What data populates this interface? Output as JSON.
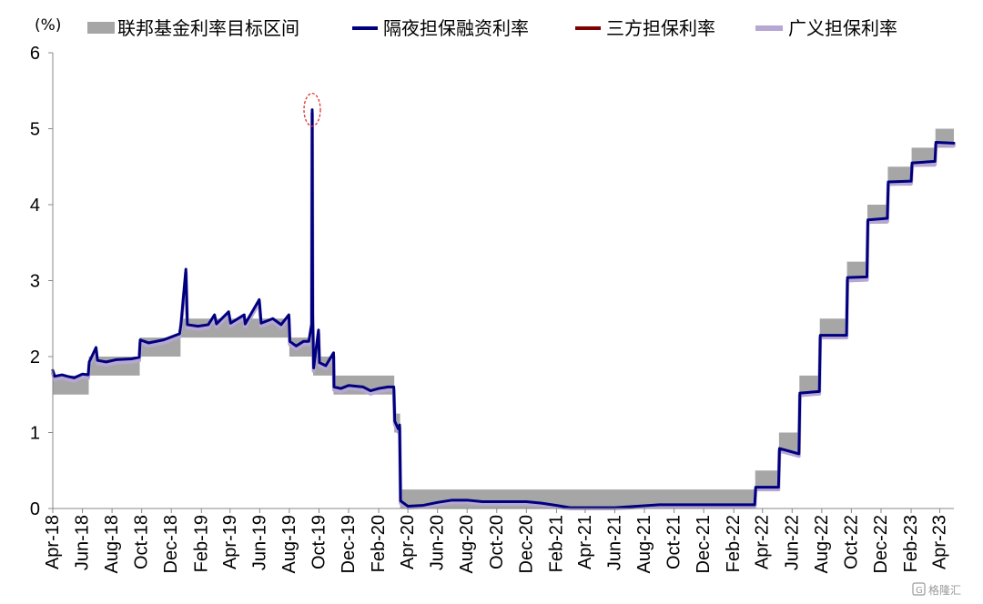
{
  "chart_data": {
    "type": "line",
    "title": "",
    "y_unit": "(%)",
    "ylim": [
      0,
      6
    ],
    "y_ticks": [
      "0",
      "1",
      "2",
      "3",
      "4",
      "5",
      "6"
    ],
    "x_range": [
      "2018-04-01",
      "2023-04-30"
    ],
    "x_tick_labels": [
      "Apr-18",
      "Jun-18",
      "Aug-18",
      "Oct-18",
      "Dec-18",
      "Feb-19",
      "Apr-19",
      "Jun-19",
      "Aug-19",
      "Oct-19",
      "Dec-19",
      "Feb-20",
      "Apr-20",
      "Jun-20",
      "Aug-20",
      "Oct-20",
      "Dec-20",
      "Feb-21",
      "Apr-21",
      "Jun-21",
      "Aug-21",
      "Oct-21",
      "Dec-21",
      "Feb-22",
      "Apr-22",
      "Jun-22",
      "Aug-22",
      "Oct-22",
      "Dec-22",
      "Feb-23",
      "Apr-23"
    ],
    "grid": false,
    "legend_position": "top",
    "fed_target_range": {
      "name": "联邦基金利率目标区间",
      "color": "#a6a6a6",
      "steps": [
        {
          "from": "2018-04-01",
          "lower": 1.5,
          "upper": 1.75
        },
        {
          "from": "2018-06-14",
          "lower": 1.75,
          "upper": 2.0
        },
        {
          "from": "2018-09-27",
          "lower": 2.0,
          "upper": 2.25
        },
        {
          "from": "2018-12-20",
          "lower": 2.25,
          "upper": 2.5
        },
        {
          "from": "2019-08-01",
          "lower": 2.0,
          "upper": 2.25
        },
        {
          "from": "2019-09-19",
          "lower": 1.75,
          "upper": 2.0
        },
        {
          "from": "2019-10-31",
          "lower": 1.5,
          "upper": 1.75
        },
        {
          "from": "2020-03-04",
          "lower": 1.0,
          "upper": 1.25
        },
        {
          "from": "2020-03-16",
          "lower": 0.0,
          "upper": 0.25
        },
        {
          "from": "2022-03-17",
          "lower": 0.25,
          "upper": 0.5
        },
        {
          "from": "2022-05-05",
          "lower": 0.75,
          "upper": 1.0
        },
        {
          "from": "2022-06-16",
          "lower": 1.5,
          "upper": 1.75
        },
        {
          "from": "2022-07-28",
          "lower": 2.25,
          "upper": 2.5
        },
        {
          "from": "2022-09-22",
          "lower": 3.0,
          "upper": 3.25
        },
        {
          "from": "2022-11-03",
          "lower": 3.75,
          "upper": 4.0
        },
        {
          "from": "2022-12-15",
          "lower": 4.25,
          "upper": 4.5
        },
        {
          "from": "2023-02-02",
          "lower": 4.5,
          "upper": 4.75
        },
        {
          "from": "2023-03-23",
          "lower": 4.75,
          "upper": 5.0
        },
        {
          "to": "2023-04-30"
        }
      ]
    },
    "series": [
      {
        "name": "隔夜担保融资利率",
        "color": "#00007f",
        "width": 3,
        "points": [
          [
            "2018-04-01",
            1.82
          ],
          [
            "2018-04-05",
            1.74
          ],
          [
            "2018-04-20",
            1.76
          ],
          [
            "2018-05-01",
            1.74
          ],
          [
            "2018-05-15",
            1.72
          ],
          [
            "2018-06-01",
            1.77
          ],
          [
            "2018-06-13",
            1.76
          ],
          [
            "2018-06-15",
            1.93
          ],
          [
            "2018-06-29",
            2.12
          ],
          [
            "2018-07-02",
            1.95
          ],
          [
            "2018-07-20",
            1.93
          ],
          [
            "2018-08-10",
            1.96
          ],
          [
            "2018-09-10",
            1.97
          ],
          [
            "2018-09-26",
            1.99
          ],
          [
            "2018-09-28",
            2.22
          ],
          [
            "2018-10-15",
            2.18
          ],
          [
            "2018-11-15",
            2.22
          ],
          [
            "2018-12-18",
            2.3
          ],
          [
            "2018-12-21",
            2.43
          ],
          [
            "2018-12-31",
            3.15
          ],
          [
            "2019-01-03",
            2.42
          ],
          [
            "2019-01-25",
            2.4
          ],
          [
            "2019-02-15",
            2.42
          ],
          [
            "2019-02-28",
            2.55
          ],
          [
            "2019-03-04",
            2.43
          ],
          [
            "2019-03-29",
            2.59
          ],
          [
            "2019-04-02",
            2.44
          ],
          [
            "2019-04-30",
            2.55
          ],
          [
            "2019-05-02",
            2.43
          ],
          [
            "2019-05-31",
            2.75
          ],
          [
            "2019-06-04",
            2.44
          ],
          [
            "2019-06-28",
            2.5
          ],
          [
            "2019-07-15",
            2.42
          ],
          [
            "2019-07-31",
            2.55
          ],
          [
            "2019-08-02",
            2.2
          ],
          [
            "2019-08-15",
            2.14
          ],
          [
            "2019-08-30",
            2.2
          ],
          [
            "2019-09-10",
            2.2
          ],
          [
            "2019-09-16",
            2.43
          ],
          [
            "2019-09-17",
            5.25
          ],
          [
            "2019-09-18",
            2.55
          ],
          [
            "2019-09-20",
            1.85
          ],
          [
            "2019-09-30",
            2.35
          ],
          [
            "2019-10-02",
            1.92
          ],
          [
            "2019-10-15",
            1.88
          ],
          [
            "2019-10-31",
            2.05
          ],
          [
            "2019-11-01",
            1.6
          ],
          [
            "2019-11-15",
            1.58
          ],
          [
            "2019-12-01",
            1.62
          ],
          [
            "2019-12-31",
            1.6
          ],
          [
            "2020-01-15",
            1.55
          ],
          [
            "2020-02-01",
            1.58
          ],
          [
            "2020-02-20",
            1.6
          ],
          [
            "2020-03-03",
            1.6
          ],
          [
            "2020-03-05",
            1.15
          ],
          [
            "2020-03-12",
            1.05
          ],
          [
            "2020-03-15",
            1.1
          ],
          [
            "2020-03-17",
            0.1
          ],
          [
            "2020-04-01",
            0.03
          ],
          [
            "2020-05-01",
            0.04
          ],
          [
            "2020-06-01",
            0.08
          ],
          [
            "2020-07-01",
            0.11
          ],
          [
            "2020-08-01",
            0.11
          ],
          [
            "2020-09-01",
            0.09
          ],
          [
            "2020-10-01",
            0.09
          ],
          [
            "2020-11-01",
            0.09
          ],
          [
            "2020-12-01",
            0.09
          ],
          [
            "2021-01-01",
            0.07
          ],
          [
            "2021-02-01",
            0.04
          ],
          [
            "2021-03-01",
            0.01
          ],
          [
            "2021-06-01",
            0.01
          ],
          [
            "2021-09-01",
            0.05
          ],
          [
            "2021-12-01",
            0.05
          ],
          [
            "2022-03-01",
            0.05
          ],
          [
            "2022-03-16",
            0.05
          ],
          [
            "2022-03-18",
            0.28
          ],
          [
            "2022-05-04",
            0.28
          ],
          [
            "2022-05-06",
            0.79
          ],
          [
            "2022-06-15",
            0.72
          ],
          [
            "2022-06-17",
            1.52
          ],
          [
            "2022-07-27",
            1.54
          ],
          [
            "2022-07-29",
            2.28
          ],
          [
            "2022-09-21",
            2.28
          ],
          [
            "2022-09-23",
            3.04
          ],
          [
            "2022-11-02",
            3.05
          ],
          [
            "2022-11-04",
            3.8
          ],
          [
            "2022-12-14",
            3.82
          ],
          [
            "2022-12-16",
            4.3
          ],
          [
            "2023-02-01",
            4.31
          ],
          [
            "2023-02-03",
            4.55
          ],
          [
            "2023-03-22",
            4.57
          ],
          [
            "2023-03-24",
            4.82
          ],
          [
            "2023-04-30",
            4.81
          ]
        ]
      },
      {
        "name": "三方担保利率",
        "color": "#7f0000",
        "width": 3,
        "hidden_under": "广义担保利率",
        "points": []
      },
      {
        "name": "广义担保利率",
        "color": "#b7a7d3",
        "width": 4,
        "points": [
          [
            "2018-04-01",
            1.78
          ],
          [
            "2018-04-05",
            1.7
          ],
          [
            "2018-04-20",
            1.72
          ],
          [
            "2018-05-01",
            1.7
          ],
          [
            "2018-05-15",
            1.68
          ],
          [
            "2018-06-01",
            1.73
          ],
          [
            "2018-06-13",
            1.72
          ],
          [
            "2018-06-15",
            1.89
          ],
          [
            "2018-06-29",
            2.08
          ],
          [
            "2018-07-02",
            1.91
          ],
          [
            "2018-07-20",
            1.89
          ],
          [
            "2018-08-10",
            1.92
          ],
          [
            "2018-09-10",
            1.93
          ],
          [
            "2018-09-26",
            1.95
          ],
          [
            "2018-09-28",
            2.18
          ],
          [
            "2018-10-15",
            2.14
          ],
          [
            "2018-11-15",
            2.18
          ],
          [
            "2018-12-18",
            2.26
          ],
          [
            "2018-12-21",
            2.4
          ],
          [
            "2018-12-31",
            3.1
          ],
          [
            "2019-01-03",
            2.38
          ],
          [
            "2019-01-25",
            2.36
          ],
          [
            "2019-02-15",
            2.38
          ],
          [
            "2019-02-28",
            2.51
          ],
          [
            "2019-03-04",
            2.39
          ],
          [
            "2019-03-29",
            2.55
          ],
          [
            "2019-04-02",
            2.4
          ],
          [
            "2019-04-30",
            2.51
          ],
          [
            "2019-05-02",
            2.39
          ],
          [
            "2019-05-31",
            2.71
          ],
          [
            "2019-06-04",
            2.4
          ],
          [
            "2019-06-28",
            2.46
          ],
          [
            "2019-07-15",
            2.38
          ],
          [
            "2019-07-31",
            2.51
          ],
          [
            "2019-08-02",
            2.16
          ],
          [
            "2019-08-15",
            2.1
          ],
          [
            "2019-08-30",
            2.16
          ],
          [
            "2019-09-10",
            2.16
          ],
          [
            "2019-09-16",
            2.4
          ],
          [
            "2019-09-17",
            5.2
          ],
          [
            "2019-09-18",
            2.5
          ],
          [
            "2019-09-20",
            1.81
          ],
          [
            "2019-09-30",
            2.3
          ],
          [
            "2019-10-02",
            1.88
          ],
          [
            "2019-10-15",
            1.84
          ],
          [
            "2019-10-31",
            2.0
          ],
          [
            "2019-11-01",
            1.56
          ],
          [
            "2019-11-15",
            1.54
          ],
          [
            "2019-12-01",
            1.58
          ],
          [
            "2019-12-31",
            1.56
          ],
          [
            "2020-01-15",
            1.51
          ],
          [
            "2020-02-01",
            1.54
          ],
          [
            "2020-02-20",
            1.56
          ],
          [
            "2020-03-03",
            1.56
          ],
          [
            "2020-03-05",
            1.11
          ],
          [
            "2020-03-12",
            1.01
          ],
          [
            "2020-03-15",
            1.06
          ],
          [
            "2020-03-17",
            0.07
          ],
          [
            "2020-04-01",
            0.01
          ],
          [
            "2020-05-01",
            0.02
          ],
          [
            "2020-06-01",
            0.05
          ],
          [
            "2020-07-01",
            0.08
          ],
          [
            "2020-08-01",
            0.08
          ],
          [
            "2020-09-01",
            0.06
          ],
          [
            "2020-10-01",
            0.06
          ],
          [
            "2020-11-01",
            0.06
          ],
          [
            "2020-12-01",
            0.06
          ],
          [
            "2021-01-01",
            0.04
          ],
          [
            "2021-02-01",
            0.02
          ],
          [
            "2021-03-01",
            0.0
          ],
          [
            "2021-06-01",
            0.0
          ],
          [
            "2021-09-01",
            0.03
          ],
          [
            "2021-12-01",
            0.03
          ],
          [
            "2022-03-01",
            0.03
          ],
          [
            "2022-03-16",
            0.03
          ],
          [
            "2022-03-18",
            0.25
          ],
          [
            "2022-05-04",
            0.25
          ],
          [
            "2022-05-06",
            0.76
          ],
          [
            "2022-06-15",
            0.69
          ],
          [
            "2022-06-17",
            1.49
          ],
          [
            "2022-07-27",
            1.51
          ],
          [
            "2022-07-29",
            2.25
          ],
          [
            "2022-09-21",
            2.25
          ],
          [
            "2022-09-23",
            3.0
          ],
          [
            "2022-11-02",
            3.01
          ],
          [
            "2022-11-04",
            3.77
          ],
          [
            "2022-12-14",
            3.78
          ],
          [
            "2022-12-16",
            4.27
          ],
          [
            "2023-02-01",
            4.28
          ],
          [
            "2023-02-03",
            4.52
          ],
          [
            "2023-03-22",
            4.53
          ],
          [
            "2023-03-24",
            4.79
          ],
          [
            "2023-04-30",
            4.78
          ]
        ]
      }
    ],
    "annotation": {
      "type": "dashed-circle",
      "color": "#e03030",
      "at": [
        "2019-09-17",
        5.25
      ]
    }
  },
  "watermark": {
    "icon": "logo-icon",
    "text": "格隆汇"
  }
}
